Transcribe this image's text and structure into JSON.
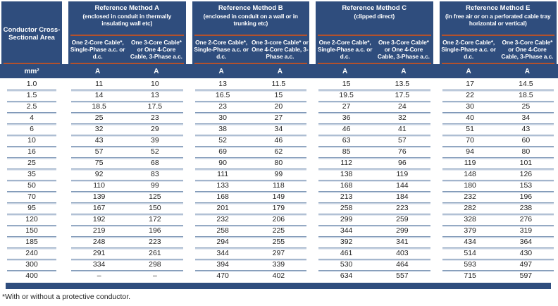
{
  "colors": {
    "navy": "#2f4d7d",
    "orange": "#b3512d",
    "row_line": "#7e97b6",
    "text": "#1f1f1f"
  },
  "area_column": {
    "title": "Conductor Cross-Sectional Area",
    "unit": "mm²"
  },
  "unit_label": "A",
  "groups": [
    {
      "title": "Reference Method A",
      "subtitle": "(enclosed in conduit in thermally insulating wall etc)",
      "col1": "One 2-Core Cable*, Single-Phase a.c. or d.c.",
      "col2": "One 3-Core Cable* or One 4-Core Cable, 3-Phase a.c."
    },
    {
      "title": "Reference Method B",
      "subtitle": "(enclosed in conduit on a wall or in trunking etc)",
      "col1": "One 2-Core Cable*, Single-Phase a.c. or d.c.",
      "col2": "One 3-core Cable* or One 4-Core Cable, 3-Phase a.c."
    },
    {
      "title": "Reference Method C",
      "subtitle": "(clipped direct)",
      "col1": "One 2-Core Cable*, Single-Phase a.c. or d.c.",
      "col2": "One 3-Core Cable* or One 4-Core Cable, 3-Phase a.c."
    },
    {
      "title": "Reference Method E",
      "subtitle": "(in free air or on a perforated cable tray horizontal or vertical)",
      "col1": "One 2-Core Cable*, Single-Phase a.c. or d.c.",
      "col2": "One 3-Core Cable* or One 4-Core Cable, 3-Phase a.c."
    }
  ],
  "rows": [
    {
      "area": "1.0",
      "values": [
        "11",
        "10",
        "13",
        "11.5",
        "15",
        "13.5",
        "17",
        "14.5"
      ]
    },
    {
      "area": "1.5",
      "values": [
        "14",
        "13",
        "16.5",
        "15",
        "19.5",
        "17.5",
        "22",
        "18.5"
      ]
    },
    {
      "area": "2.5",
      "values": [
        "18.5",
        "17.5",
        "23",
        "20",
        "27",
        "24",
        "30",
        "25"
      ]
    },
    {
      "area": "4",
      "values": [
        "25",
        "23",
        "30",
        "27",
        "36",
        "32",
        "40",
        "34"
      ]
    },
    {
      "area": "6",
      "values": [
        "32",
        "29",
        "38",
        "34",
        "46",
        "41",
        "51",
        "43"
      ]
    },
    {
      "area": "10",
      "values": [
        "43",
        "39",
        "52",
        "46",
        "63",
        "57",
        "70",
        "60"
      ]
    },
    {
      "area": "16",
      "values": [
        "57",
        "52",
        "69",
        "62",
        "85",
        "76",
        "94",
        "80"
      ]
    },
    {
      "area": "25",
      "values": [
        "75",
        "68",
        "90",
        "80",
        "112",
        "96",
        "119",
        "101"
      ]
    },
    {
      "area": "35",
      "values": [
        "92",
        "83",
        "111",
        "99",
        "138",
        "119",
        "148",
        "126"
      ]
    },
    {
      "area": "50",
      "values": [
        "110",
        "99",
        "133",
        "118",
        "168",
        "144",
        "180",
        "153"
      ]
    },
    {
      "area": "70",
      "values": [
        "139",
        "125",
        "168",
        "149",
        "213",
        "184",
        "232",
        "196"
      ]
    },
    {
      "area": "95",
      "values": [
        "167",
        "150",
        "201",
        "179",
        "258",
        "223",
        "282",
        "238"
      ]
    },
    {
      "area": "120",
      "values": [
        "192",
        "172",
        "232",
        "206",
        "299",
        "259",
        "328",
        "276"
      ]
    },
    {
      "area": "150",
      "values": [
        "219",
        "196",
        "258",
        "225",
        "344",
        "299",
        "379",
        "319"
      ]
    },
    {
      "area": "185",
      "values": [
        "248",
        "223",
        "294",
        "255",
        "392",
        "341",
        "434",
        "364"
      ]
    },
    {
      "area": "240",
      "values": [
        "291",
        "261",
        "344",
        "297",
        "461",
        "403",
        "514",
        "430"
      ]
    },
    {
      "area": "300",
      "values": [
        "334",
        "298",
        "394",
        "339",
        "530",
        "464",
        "593",
        "497"
      ]
    },
    {
      "area": "400",
      "values": [
        "–",
        "–",
        "470",
        "402",
        "634",
        "557",
        "715",
        "597"
      ]
    }
  ],
  "footnote": "*With or without a protective conductor."
}
